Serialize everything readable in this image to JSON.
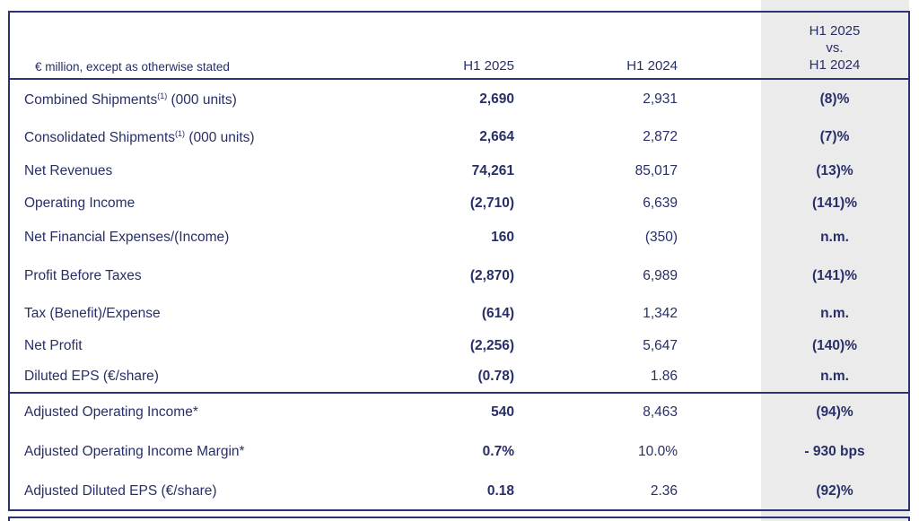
{
  "colors": {
    "text_navy": "#272f68",
    "border_navy": "#2b3370",
    "band_gray": "#ebebec"
  },
  "table": {
    "unit_note": "€ million, except as otherwise stated",
    "columns": {
      "col_2025": "H1 2025",
      "col_2024": "H1 2024",
      "col_change_line1": "H1 2025",
      "col_change_line2": "vs.",
      "col_change_line3": "H1 2024"
    },
    "rows": [
      {
        "label": "Combined Shipments",
        "sup": "(1)",
        "label_post": " (000 units)",
        "h1_2025": "2,690",
        "h1_2024": "2,931",
        "change": "(8)%"
      },
      {
        "label": "Consolidated Shipments",
        "sup": "(1)",
        "label_post": " (000 units)",
        "h1_2025": "2,664",
        "h1_2024": "2,872",
        "change": "(7)%"
      },
      {
        "label": "Net Revenues",
        "sup": "",
        "label_post": "",
        "h1_2025": "74,261",
        "h1_2024": "85,017",
        "change": "(13)%"
      },
      {
        "label": "Operating Income",
        "sup": "",
        "label_post": "",
        "h1_2025": "(2,710)",
        "h1_2024": "6,639",
        "change": "(141)%"
      },
      {
        "label": "Net Financial Expenses/(Income)",
        "sup": "",
        "label_post": "",
        "h1_2025": "160",
        "h1_2024": "(350)",
        "change": "n.m."
      },
      {
        "label": "Profit Before Taxes",
        "sup": "",
        "label_post": "",
        "h1_2025": "(2,870)",
        "h1_2024": "6,989",
        "change": "(141)%"
      },
      {
        "label": "Tax (Benefit)/Expense",
        "sup": "",
        "label_post": "",
        "h1_2025": "(614)",
        "h1_2024": "1,342",
        "change": "n.m."
      },
      {
        "label": "Net Profit",
        "sup": "",
        "label_post": "",
        "h1_2025": "(2,256)",
        "h1_2024": "5,647",
        "change": "(140)%"
      },
      {
        "label": "Diluted EPS (€/share)",
        "sup": "",
        "label_post": "",
        "h1_2025": "(0.78)",
        "h1_2024": "1.86",
        "change": "n.m."
      }
    ],
    "adjusted_rows": [
      {
        "label": "Adjusted Operating Income*",
        "h1_2025": "540",
        "h1_2024": "8,463",
        "change": "(94)%"
      },
      {
        "label": "Adjusted Operating Income Margin*",
        "h1_2025": "0.7%",
        "h1_2024": "10.0%",
        "change": "- 930 bps"
      },
      {
        "label": "Adjusted Diluted EPS (€/share)",
        "h1_2025": "0.18",
        "h1_2024": "2.36",
        "change": "(92)%"
      }
    ]
  }
}
